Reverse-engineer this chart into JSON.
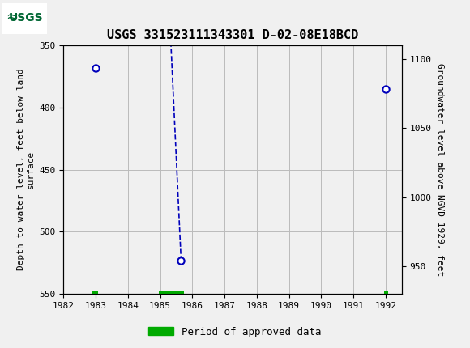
{
  "title": "USGS 331523111343301 D-02-08E18BCD",
  "ylabel_left": "Depth to water level, feet below land\nsurface",
  "ylabel_right": "Groundwater level above NGVD 1929, feet",
  "xlim": [
    1982,
    1992.5
  ],
  "ylim_left": [
    550,
    350
  ],
  "ylim_right": [
    930,
    1110
  ],
  "xticks": [
    1982,
    1983,
    1984,
    1985,
    1986,
    1987,
    1988,
    1989,
    1990,
    1991,
    1992
  ],
  "yticks_left": [
    350,
    400,
    450,
    500,
    550
  ],
  "yticks_right": [
    950,
    1000,
    1050,
    1100
  ],
  "data_x": [
    1983.0,
    1985.3,
    1985.65,
    1992.0
  ],
  "data_y": [
    368,
    330,
    523,
    385
  ],
  "marker_color": "#0000bb",
  "line_color": "#0000bb",
  "grid_color": "#bbbbbb",
  "bg_color": "#f0f0f0",
  "plot_bg_color": "#f0f0f0",
  "header_color": "#006633",
  "approved_bar_segments": [
    {
      "x_start": 1982.9,
      "x_end": 1983.07
    },
    {
      "x_start": 1984.95,
      "x_end": 1985.75
    },
    {
      "x_start": 1991.96,
      "x_end": 1992.07
    }
  ],
  "approved_color": "#00aa00",
  "legend_label": "Period of approved data",
  "figsize": [
    5.8,
    4.3
  ],
  "dpi": 100
}
